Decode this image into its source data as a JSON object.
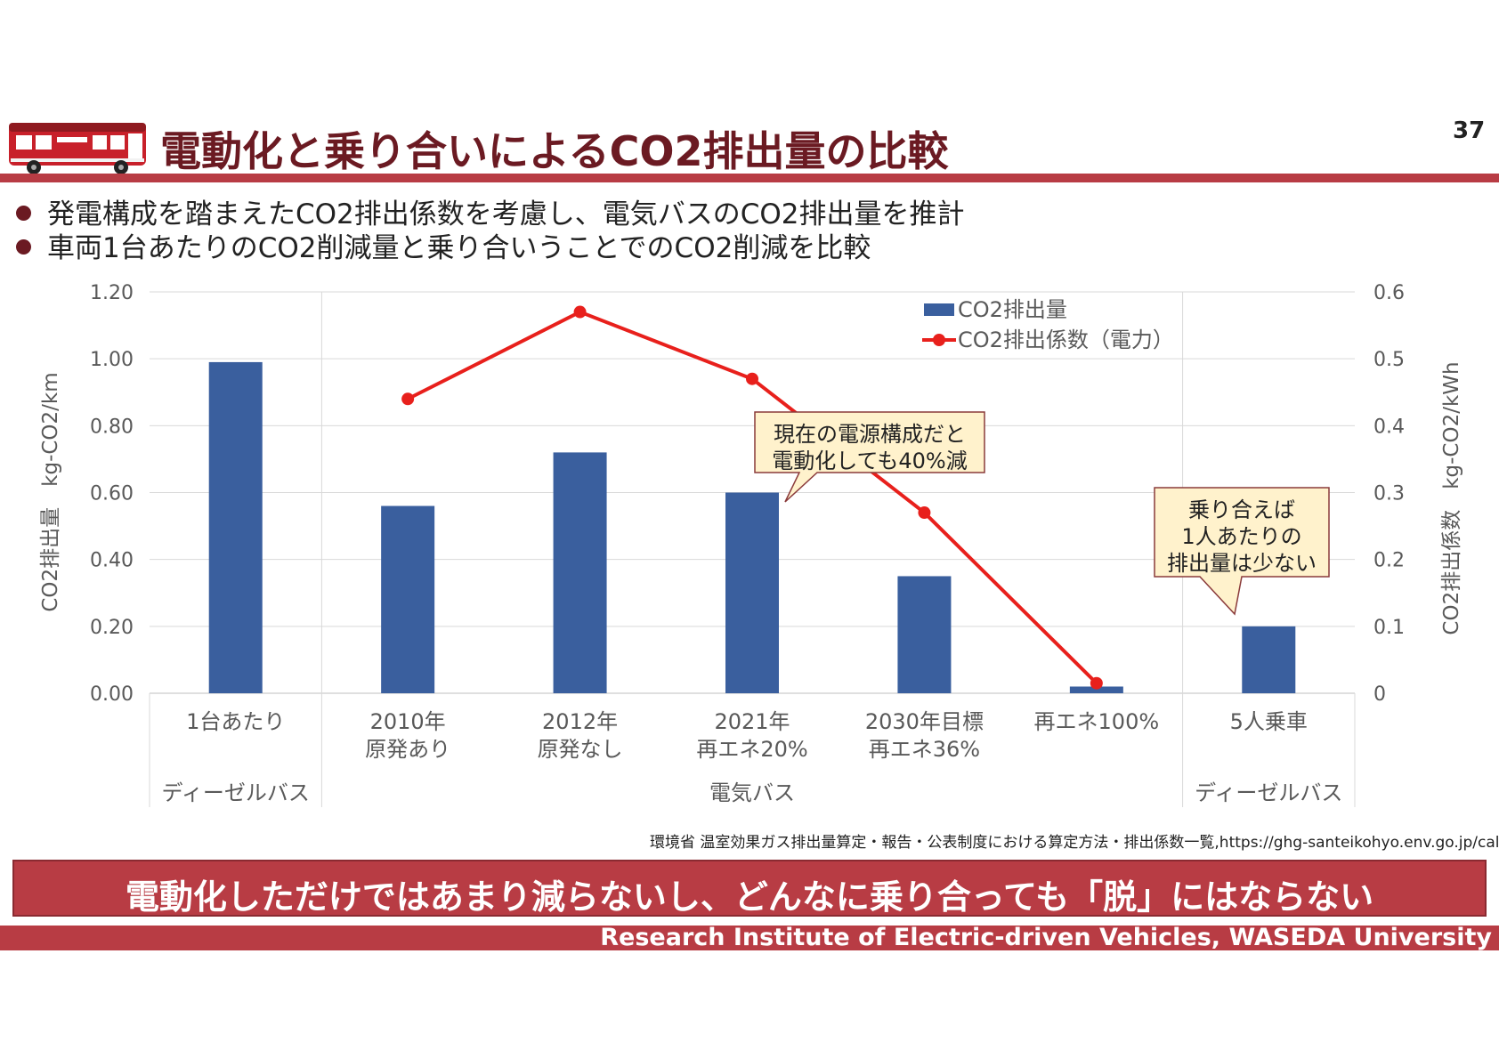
{
  "page": {
    "title": "電動化と乗り合いによるCO2排出量の比較",
    "page_number": "37"
  },
  "bullets": [
    "発電構成を踏まえたCO2排出係数を考慮し、電気バスのCO2排出量を推計",
    "車両1台あたりのCO2削減量と乗り合いうことでのCO2削減を比較"
  ],
  "chart_data": {
    "type": "bar+line",
    "categories": [
      [
        "1台あたり"
      ],
      [
        "2010年",
        "原発あり"
      ],
      [
        "2012年",
        "原発なし"
      ],
      [
        "2021年",
        "再エネ20%"
      ],
      [
        "2030年目標",
        "再エネ36%"
      ],
      [
        "再エネ100%"
      ],
      [
        "5人乗車"
      ]
    ],
    "groups": [
      {
        "label": "ディーゼルバス",
        "start": 0,
        "end": 0
      },
      {
        "label": "電気バス",
        "start": 1,
        "end": 5
      },
      {
        "label": "ディーゼルバス",
        "start": 6,
        "end": 6
      }
    ],
    "series": [
      {
        "name": "CO2排出量",
        "kind": "bar",
        "axis": "left",
        "color": "#3a5f9e",
        "values": [
          0.99,
          0.56,
          0.72,
          0.6,
          0.35,
          0.02,
          0.2
        ]
      },
      {
        "name": "CO2排出係数（電力）",
        "kind": "line",
        "axis": "right",
        "color": "#e8201c",
        "values": [
          null,
          0.44,
          0.57,
          0.47,
          0.27,
          0.015,
          null
        ]
      }
    ],
    "left_axis": {
      "label": "CO2排出量　kg-CO2/km",
      "min": 0,
      "max": 1.2,
      "ticks": [
        "0.00",
        "0.20",
        "0.40",
        "0.60",
        "0.80",
        "1.00",
        "1.20"
      ]
    },
    "right_axis": {
      "label": "CO2排出係数　kg-CO2/kWh",
      "min": 0,
      "max": 0.6,
      "ticks": [
        "0",
        "0.1",
        "0.2",
        "0.3",
        "0.4",
        "0.5",
        "0.6"
      ]
    },
    "legend_position": "top-right",
    "annotations": [
      {
        "id": "callout1",
        "lines": [
          "現在の電源構成だと",
          "電動化しても40%減"
        ]
      },
      {
        "id": "callout2",
        "lines": [
          "乗り合えば",
          "1人あたりの",
          "排出量は少ない"
        ]
      }
    ]
  },
  "source": "環境省 温室効果ガス排出量算定・報告・公表制度における算定方法・排出係数一覧,https://ghg-santeikohyo.env.go.jp/calc",
  "banner": "電動化しただけではあまり減らないし、どんなに乗り合っても「脱」にはならない",
  "footer": "Research Institute of Electric-driven Vehicles, WASEDA University",
  "colors": {
    "brand": "#b83c44",
    "title": "#6b1a22",
    "bar": "#3a5f9e",
    "line": "#e8201c"
  }
}
